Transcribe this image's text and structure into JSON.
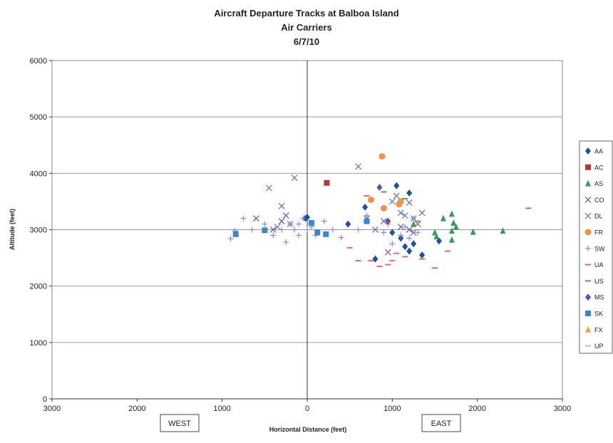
{
  "chart_data": {
    "type": "scatter",
    "title": "Aircraft Departure Tracks at Balboa Island",
    "subtitle": "Air Carriers",
    "date": "6/7/10",
    "xlabel": "Horizontal Distance (feet)",
    "ylabel": "Altitude (feet)",
    "xlim": [
      -3000,
      3000
    ],
    "ylim": [
      0,
      6000
    ],
    "x_ticks": [
      -3000,
      -2000,
      -1000,
      0,
      1000,
      2000,
      3000
    ],
    "x_tick_labels": [
      "3000",
      "2000",
      "1000",
      "0",
      "1000",
      "2000",
      "3000"
    ],
    "y_ticks": [
      0,
      1000,
      2000,
      3000,
      4000,
      5000,
      6000
    ],
    "y_tick_labels": [
      "0",
      "1000",
      "2000",
      "3000",
      "4000",
      "5000",
      "6000"
    ],
    "grid": "horizontal",
    "legend_position": "right",
    "direction_labels": {
      "west": "WEST",
      "east": "EAST"
    },
    "series": [
      {
        "name": "AA",
        "marker": "diamond",
        "color": "#1f4fa0",
        "points": [
          [
            -20,
            3200
          ],
          [
            0,
            3220
          ],
          [
            480,
            3100
          ],
          [
            680,
            3400
          ],
          [
            1000,
            2950
          ],
          [
            1050,
            3780
          ],
          [
            1100,
            2850
          ],
          [
            1200,
            3650
          ],
          [
            1150,
            2700
          ],
          [
            1250,
            2750
          ],
          [
            1350,
            2550
          ],
          [
            1550,
            2800
          ],
          [
            800,
            2480
          ],
          [
            1200,
            2620
          ]
        ]
      },
      {
        "name": "AC",
        "marker": "square",
        "color": "#b03a3a",
        "points": [
          [
            230,
            3830
          ]
        ]
      },
      {
        "name": "AS",
        "marker": "triangle",
        "color": "#3a9a5a",
        "points": [
          [
            1500,
            2950
          ],
          [
            1520,
            2880
          ],
          [
            1600,
            3200
          ],
          [
            1700,
            3280
          ],
          [
            1720,
            3120
          ],
          [
            1700,
            2980
          ],
          [
            1700,
            2820
          ],
          [
            1750,
            3050
          ],
          [
            1950,
            2960
          ],
          [
            2300,
            2980
          ],
          [
            1250,
            3100
          ]
        ]
      },
      {
        "name": "CO",
        "marker": "x",
        "color": "#7a5aa0",
        "points": [
          [
            -600,
            3200
          ],
          [
            -300,
            3150
          ],
          [
            -250,
            3250
          ],
          [
            -400,
            3000
          ],
          [
            700,
            3200
          ],
          [
            900,
            3150
          ],
          [
            950,
            2600
          ],
          [
            1100,
            3050
          ],
          [
            1200,
            3000
          ],
          [
            1250,
            2950
          ],
          [
            1300,
            3100
          ]
        ]
      },
      {
        "name": "DL",
        "marker": "x",
        "color": "#6a7ac8",
        "points": [
          [
            -450,
            3740
          ],
          [
            -150,
            3920
          ],
          [
            -300,
            3420
          ],
          [
            -200,
            3100
          ],
          [
            600,
            4120
          ],
          [
            1000,
            3500
          ],
          [
            1100,
            3300
          ],
          [
            1250,
            3200
          ],
          [
            1200,
            3480
          ],
          [
            1150,
            3250
          ],
          [
            1350,
            3300
          ],
          [
            1050,
            3600
          ],
          [
            800,
            3000
          ],
          [
            -350,
            3050
          ]
        ]
      },
      {
        "name": "FR",
        "marker": "circle",
        "color": "#f0924a",
        "points": [
          [
            880,
            4300
          ],
          [
            750,
            3530
          ],
          [
            900,
            3380
          ],
          [
            1080,
            3450
          ],
          [
            1100,
            3500
          ]
        ]
      },
      {
        "name": "SW",
        "marker": "plus",
        "color": "#7f8fd6",
        "points": [
          [
            -900,
            2840
          ],
          [
            -850,
            2980
          ],
          [
            -750,
            3200
          ],
          [
            -650,
            3000
          ],
          [
            -500,
            3100
          ],
          [
            -400,
            2900
          ],
          [
            -300,
            3000
          ],
          [
            -250,
            2780
          ],
          [
            -200,
            3100
          ],
          [
            -150,
            3000
          ],
          [
            -100,
            2900
          ],
          [
            -50,
            3200
          ],
          [
            50,
            3050
          ],
          [
            100,
            2900
          ],
          [
            200,
            3150
          ],
          [
            300,
            3000
          ],
          [
            400,
            2860
          ],
          [
            600,
            3000
          ],
          [
            700,
            3250
          ],
          [
            900,
            2950
          ],
          [
            950,
            3100
          ],
          [
            1000,
            2750
          ],
          [
            1100,
            2900
          ],
          [
            1150,
            3050
          ],
          [
            1250,
            3200
          ],
          [
            1300,
            2950
          ],
          [
            1200,
            2850
          ],
          [
            -100,
            3100
          ],
          [
            0,
            3000
          ]
        ]
      },
      {
        "name": "UA",
        "marker": "dash",
        "color": "#e06a6a",
        "points": [
          [
            500,
            2680
          ],
          [
            600,
            2450
          ],
          [
            700,
            3600
          ],
          [
            750,
            2450
          ],
          [
            850,
            2350
          ],
          [
            950,
            2380
          ],
          [
            1000,
            2450
          ],
          [
            1050,
            2580
          ],
          [
            1150,
            2520
          ],
          [
            1350,
            2480
          ],
          [
            1500,
            2320
          ],
          [
            1650,
            2620
          ]
        ]
      },
      {
        "name": "US",
        "marker": "dash",
        "color": "#5aa060",
        "points": [
          [
            900,
            3670
          ],
          [
            1150,
            3550
          ],
          [
            1300,
            3150
          ],
          [
            2600,
            3380
          ]
        ]
      },
      {
        "name": "MS",
        "marker": "diamond",
        "color": "#6a4aa0",
        "points": [
          [
            850,
            3750
          ],
          [
            950,
            3150
          ]
        ]
      },
      {
        "name": "SK",
        "marker": "square",
        "color": "#3a86c8",
        "points": [
          [
            -840,
            2920
          ],
          [
            -500,
            2990
          ],
          [
            50,
            3120
          ],
          [
            220,
            2920
          ],
          [
            700,
            3150
          ],
          [
            120,
            2950
          ]
        ]
      },
      {
        "name": "FX",
        "marker": "triangle",
        "color": "#f0a050",
        "points": []
      },
      {
        "name": "UP",
        "marker": "dash",
        "color": "#c0c0c0",
        "points": []
      }
    ]
  }
}
